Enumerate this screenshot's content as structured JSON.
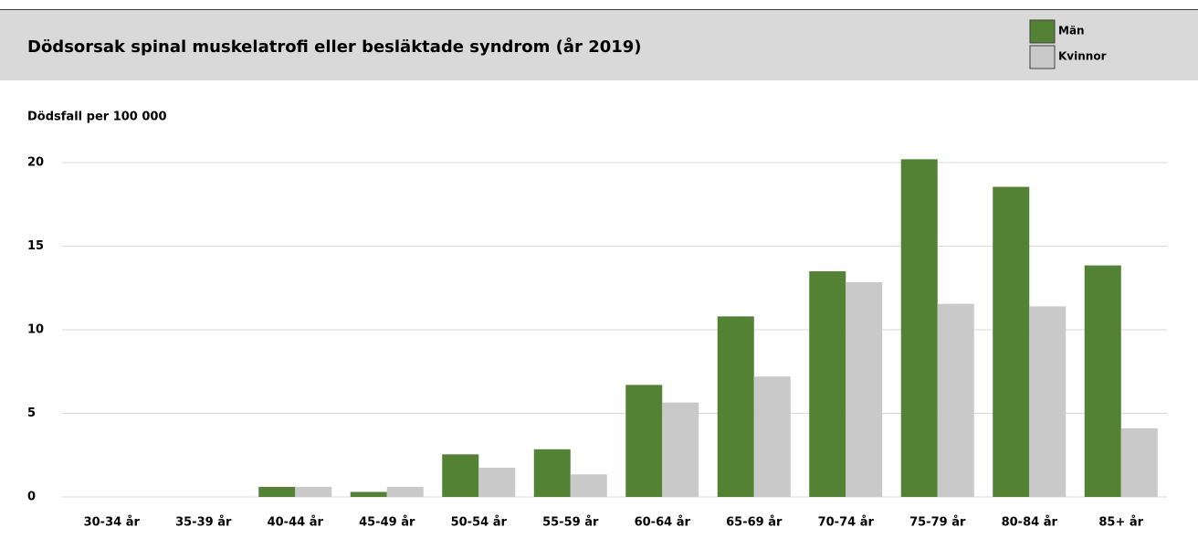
{
  "chart_data": {
    "type": "bar",
    "title": "Dödsorsak spinal muskelatrofi eller besläktade syndrom (år 2019)",
    "y_label": "Dödsfall per 100 000",
    "categories": [
      "30-34 år",
      "35-39 år",
      "40-44 år",
      "45-49 år",
      "50-54 år",
      "55-59 år",
      "60-64 år",
      "65-69 år",
      "70-74 år",
      "75-79 år",
      "80-84 år",
      "85+ år"
    ],
    "series": [
      {
        "name": "Män",
        "color": "#548235",
        "values": [
          0,
          0,
          0.6,
          0.3,
          2.55,
          2.85,
          6.7,
          10.8,
          13.5,
          20.2,
          18.55,
          13.85
        ]
      },
      {
        "name": "Kvinnor",
        "color": "#c9c9c9",
        "values": [
          0,
          0,
          0.6,
          0.6,
          1.75,
          1.35,
          5.65,
          7.2,
          12.85,
          11.55,
          11.4,
          4.1
        ]
      }
    ],
    "ylim": [
      0,
      20
    ],
    "yticks": [
      0,
      5,
      10,
      15,
      20
    ],
    "grid": true,
    "legend": "top-right"
  }
}
